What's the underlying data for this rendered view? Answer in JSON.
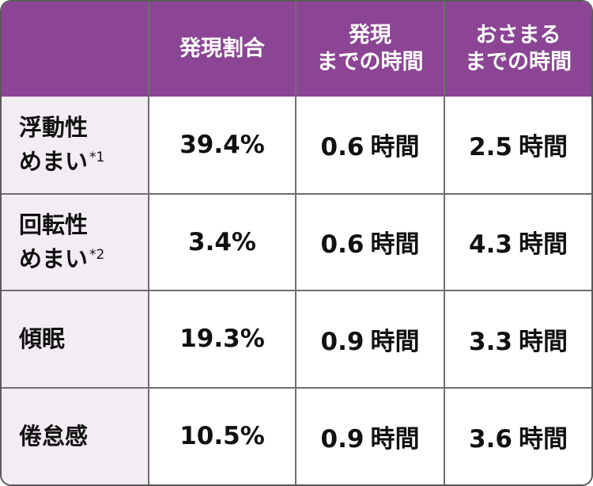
{
  "header": {
    "col1_line1": "発現割合",
    "col2_line1": "発現",
    "col2_line2": "までの時間",
    "col3_line1": "おさまる",
    "col3_line2": "までの時間"
  },
  "rows": [
    {
      "label_line1": "浮動性",
      "label_line2": "めまい",
      "note": "*1",
      "incidence": "39.4%",
      "onset_value": "0.6",
      "onset_unit": "時間",
      "resolve_value": "2.5",
      "resolve_unit": "時間"
    },
    {
      "label_line1": "回転性",
      "label_line2": "めまい",
      "note": "*2",
      "incidence": "3.4%",
      "onset_value": "0.6",
      "onset_unit": "時間",
      "resolve_value": "4.3",
      "resolve_unit": "時間"
    },
    {
      "label_line1": "傾眠",
      "incidence": "19.3%",
      "onset_value": "0.9",
      "onset_unit": "時間",
      "resolve_value": "3.3",
      "resolve_unit": "時間"
    },
    {
      "label_line1": "倦怠感",
      "incidence": "10.5%",
      "onset_value": "0.9",
      "onset_unit": "時間",
      "resolve_value": "3.6",
      "resolve_unit": "時間"
    }
  ],
  "colors": {
    "header_bg": "#8b4594",
    "label_bg": "#f2ecf3",
    "border": "#6e6e6e"
  }
}
